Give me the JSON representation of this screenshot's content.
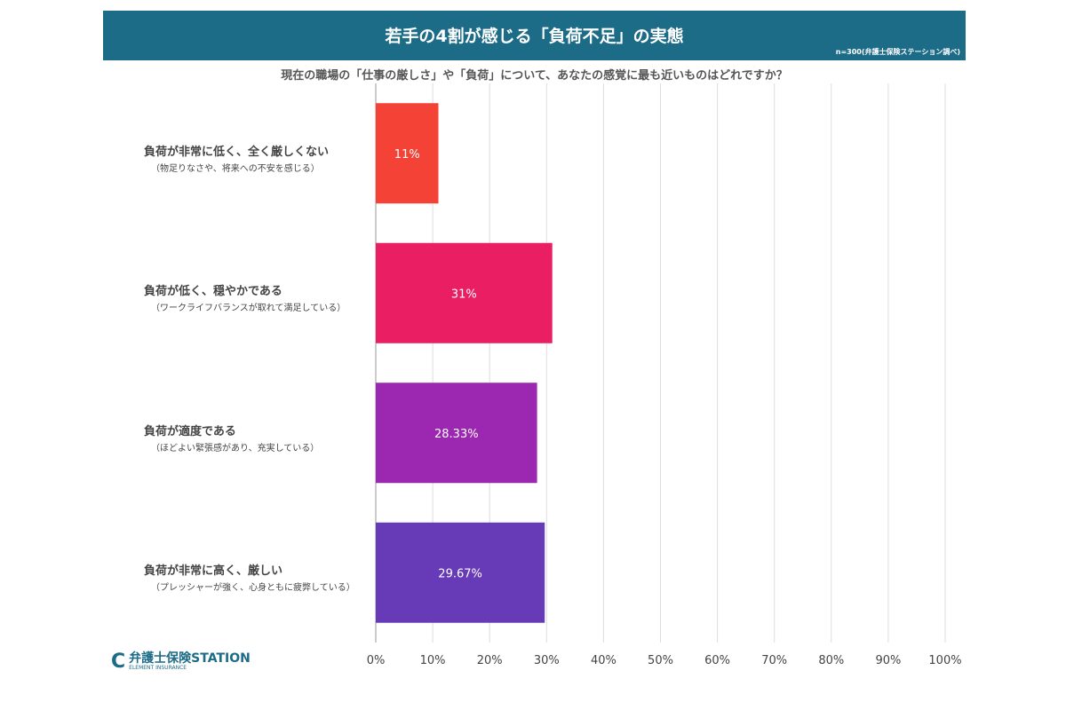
{
  "header": {
    "title": "若手の4割が感じる「負荷不足」の実態",
    "note": "n=300(弁護士保険ステーション調べ)"
  },
  "logo": {
    "text": "弁護士保険STATION",
    "sub": "ELEMENT INSURANCE"
  },
  "chart_data": {
    "type": "bar",
    "orientation": "horizontal",
    "title": "現在の職場の「仕事の厳しさ」や「負荷」について、あなたの感覚に最も近いものはどれですか？",
    "categories": [
      {
        "main": "負荷が非常に低く、全く厳しくない",
        "sub": "（物足りなさや、将来への不安を感じる）"
      },
      {
        "main": "負荷が低く、穏やかである",
        "sub": "（ワークライフバランスが取れて満足している）"
      },
      {
        "main": "負荷が適度である",
        "sub": "（ほどよい緊張感があり、充実している）"
      },
      {
        "main": "負荷が非常に高く、厳しい",
        "sub": "（プレッシャーが強く、心身ともに疲弊している）"
      }
    ],
    "values": [
      11,
      31,
      28.33,
      29.67
    ],
    "data_labels": [
      "11%",
      "31%",
      "28.33%",
      "29.67%"
    ],
    "colors": [
      "#f44336",
      "#e91e63",
      "#9c27b0",
      "#673ab7"
    ],
    "xlim": [
      0,
      100
    ],
    "xticks": [
      "0%",
      "10%",
      "20%",
      "30%",
      "40%",
      "50%",
      "60%",
      "70%",
      "80%",
      "90%",
      "100%"
    ],
    "grid": true
  }
}
